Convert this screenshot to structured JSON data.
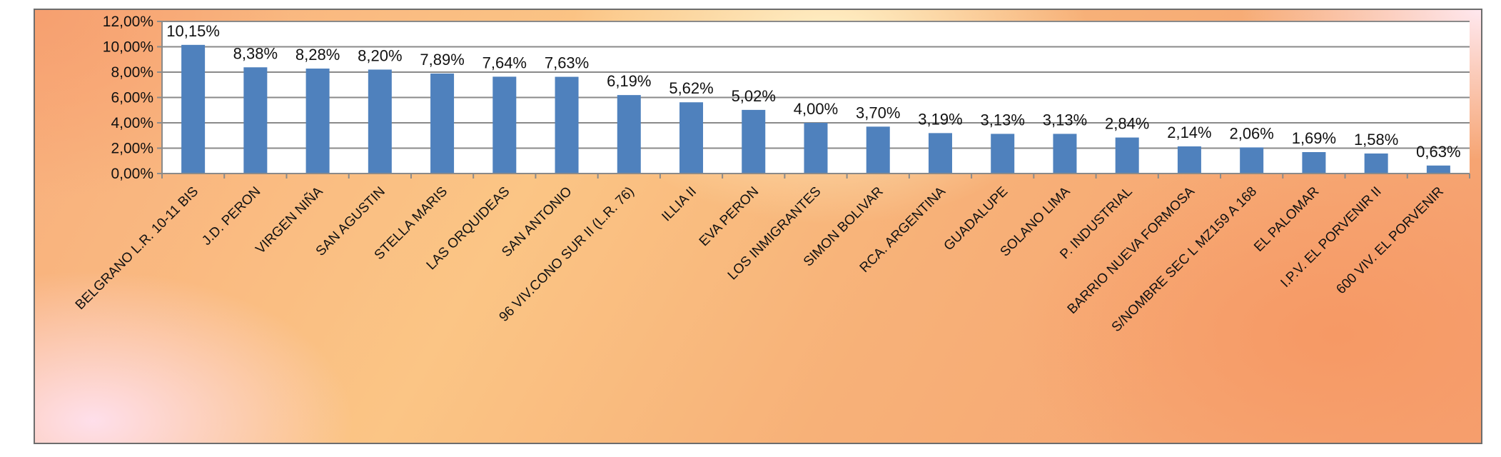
{
  "chart_data": {
    "type": "bar",
    "categories": [
      "BELGRANO L.R. 10-11 BIS",
      "J.D. PERON",
      "VIRGEN NIÑA",
      "SAN AGUSTIN",
      "STELLA MARIS",
      "LAS ORQUIDEAS",
      "SAN ANTONIO",
      "96 VIV.CONO SUR II (L.R. 76)",
      "ILLIA II",
      "EVA PERON",
      "LOS INMIGRANTES",
      "SIMON BOLIVAR",
      "RCA. ARGENTINA",
      "GUADALUPE",
      "SOLANO LIMA",
      "P. INDUSTRIAL",
      "BARRIO NUEVA FORMOSA",
      "S/NOMBRE SEC L MZ159 A 168",
      "EL PALOMAR",
      "I.P.V. EL PORVENIR II",
      "600 VIV. EL PORVENIR"
    ],
    "values": [
      10.15,
      8.38,
      8.28,
      8.2,
      7.89,
      7.64,
      7.63,
      6.19,
      5.62,
      5.02,
      4.0,
      3.7,
      3.19,
      3.13,
      3.13,
      2.84,
      2.14,
      2.06,
      1.69,
      1.58,
      0.63
    ],
    "data_labels": [
      "10,15%",
      "8,38%",
      "8,28%",
      "8,20%",
      "7,89%",
      "7,64%",
      "7,63%",
      "6,19%",
      "5,62%",
      "5,02%",
      "4,00%",
      "3,70%",
      "3,19%",
      "3,13%",
      "3,13%",
      "2,84%",
      "2,14%",
      "2,06%",
      "1,69%",
      "1,58%",
      "0,63%"
    ],
    "y_ticks": [
      0,
      2,
      4,
      6,
      8,
      10,
      12
    ],
    "y_tick_labels": [
      "0,00%",
      "2,00%",
      "4,00%",
      "6,00%",
      "8,00%",
      "10,00%",
      "12,00%"
    ],
    "ylim": [
      0,
      12
    ],
    "grid": true,
    "legend": false,
    "title": "",
    "xlabel": "",
    "ylabel": "",
    "colors": {
      "bar": "#4f81bd",
      "plot_area": "#ffffff",
      "gridline": "#8a8a8a"
    }
  }
}
